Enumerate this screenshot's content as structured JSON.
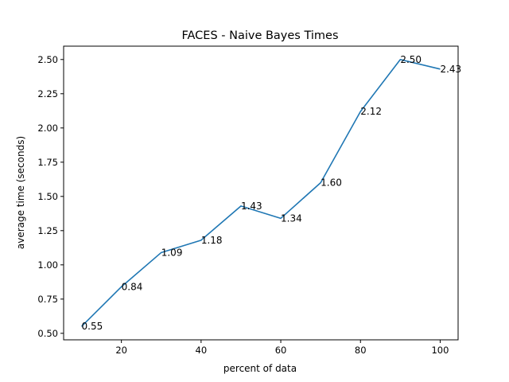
{
  "chart_data": {
    "type": "line",
    "title": "FACES - Naive Bayes Times",
    "xlabel": "percent of data",
    "ylabel": "average time (seconds)",
    "x": [
      10,
      20,
      30,
      40,
      50,
      60,
      70,
      80,
      90,
      100
    ],
    "series": [
      {
        "values": [
          0.55,
          0.84,
          1.09,
          1.18,
          1.43,
          1.34,
          1.6,
          2.12,
          2.5,
          2.43
        ],
        "color": "#1f77b4"
      }
    ],
    "data_labels": [
      "0.55",
      "0.84",
      "1.09",
      "1.18",
      "1.43",
      "1.34",
      "1.60",
      "2.12",
      "2.50",
      "2.43"
    ],
    "xlim": [
      5.5,
      104.5
    ],
    "ylim": [
      0.4525,
      2.5975
    ],
    "xticks": [
      20,
      40,
      60,
      80,
      100
    ],
    "xtick_labels": [
      "20",
      "40",
      "60",
      "80",
      "100"
    ],
    "yticks": [
      0.5,
      0.75,
      1.0,
      1.25,
      1.5,
      1.75,
      2.0,
      2.25,
      2.5
    ],
    "ytick_labels": [
      "0.50",
      "0.75",
      "1.00",
      "1.25",
      "1.50",
      "1.75",
      "2.00",
      "2.25",
      "2.50"
    ],
    "grid": false,
    "legend": false
  }
}
